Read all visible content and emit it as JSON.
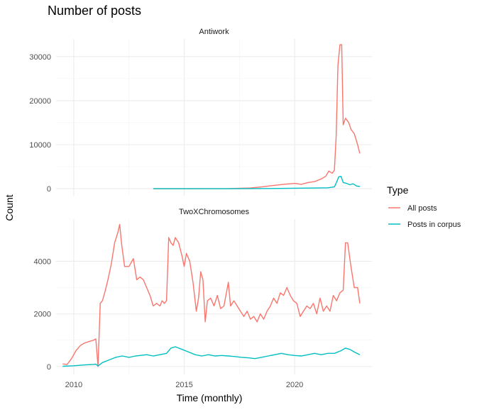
{
  "title": "Number of posts",
  "chart_data": {
    "type": "line",
    "xlabel": "Time (monthly)",
    "ylabel": "Count",
    "legend": {
      "title": "Type",
      "placement": "right",
      "entries": [
        "All posts",
        "Posts in corpus"
      ]
    },
    "colors": {
      "All posts": "#F8766D",
      "Posts in corpus": "#00BFC4"
    },
    "xlim": [
      2009.2,
      2023.5
    ],
    "x_ticks": [
      2010,
      2015,
      2020
    ],
    "x_tick_labels": [
      "2010",
      "2015",
      "2020"
    ],
    "grid": true,
    "panels": [
      {
        "name": "Antiwork",
        "ylim": [
          -1600,
          34000
        ],
        "y_ticks": [
          0,
          10000,
          20000,
          30000
        ],
        "y_tick_labels": [
          "0",
          "10000",
          "20000",
          "30000"
        ],
        "series": [
          {
            "name": "All posts",
            "x": [
              2013.6,
              2015.0,
              2017.0,
              2018.0,
              2018.5,
              2019.0,
              2019.5,
              2020.0,
              2020.3,
              2020.6,
              2020.9,
              2021.2,
              2021.4,
              2021.55,
              2021.7,
              2021.8,
              2021.88,
              2021.96,
              2022.05,
              2022.13,
              2022.2,
              2022.3,
              2022.45,
              2022.55,
              2022.7,
              2022.85,
              2022.95
            ],
            "y": [
              0,
              0,
              20,
              150,
              400,
              700,
              1000,
              1200,
              1000,
              1400,
              1600,
              2200,
              2800,
              4000,
              3500,
              4200,
              12000,
              28000,
              32700,
              32700,
              14500,
              16000,
              15000,
              13500,
              12500,
              10000,
              8000
            ]
          },
          {
            "name": "Posts in corpus",
            "x": [
              2013.6,
              2017.0,
              2019.0,
              2020.0,
              2021.0,
              2021.5,
              2021.8,
              2021.9,
              2022.0,
              2022.1,
              2022.2,
              2022.35,
              2022.5,
              2022.65,
              2022.8,
              2022.95
            ],
            "y": [
              0,
              0,
              50,
              100,
              150,
              200,
              400,
              1500,
              2700,
              2800,
              1400,
              1200,
              900,
              1100,
              600,
              500
            ]
          }
        ]
      },
      {
        "name": "TwoXChromosomes",
        "ylim": [
          -300,
          5600
        ],
        "y_ticks": [
          0,
          2000,
          4000
        ],
        "y_tick_labels": [
          "0",
          "2000",
          "4000"
        ],
        "series": [
          {
            "name": "All posts",
            "x": [
              2009.5,
              2009.7,
              2009.9,
              2010.1,
              2010.3,
              2010.5,
              2010.7,
              2010.9,
              2011.0,
              2011.1,
              2011.2,
              2011.3,
              2011.4,
              2011.55,
              2011.7,
              2011.85,
              2012.0,
              2012.08,
              2012.16,
              2012.3,
              2012.5,
              2012.7,
              2012.85,
              2013.0,
              2013.15,
              2013.3,
              2013.45,
              2013.6,
              2013.75,
              2013.9,
              2014.0,
              2014.1,
              2014.2,
              2014.3,
              2014.4,
              2014.5,
              2014.6,
              2014.75,
              2014.9,
              2015.0,
              2015.1,
              2015.25,
              2015.4,
              2015.55,
              2015.65,
              2015.75,
              2015.85,
              2015.95,
              2016.05,
              2016.2,
              2016.35,
              2016.5,
              2016.65,
              2016.8,
              2017.0,
              2017.1,
              2017.25,
              2017.4,
              2017.55,
              2017.7,
              2017.85,
              2018.0,
              2018.15,
              2018.3,
              2018.45,
              2018.6,
              2018.75,
              2018.9,
              2019.05,
              2019.2,
              2019.35,
              2019.5,
              2019.65,
              2019.8,
              2019.95,
              2020.1,
              2020.25,
              2020.4,
              2020.55,
              2020.7,
              2020.85,
              2021.0,
              2021.15,
              2021.3,
              2021.45,
              2021.6,
              2021.75,
              2021.9,
              2022.05,
              2022.2,
              2022.3,
              2022.4,
              2022.55,
              2022.7,
              2022.85,
              2022.95
            ],
            "y": [
              100,
              80,
              300,
              600,
              800,
              900,
              950,
              1000,
              1050,
              0,
              2400,
              2500,
              2800,
              3300,
              3900,
              4700,
              5100,
              5400,
              4700,
              3800,
              3800,
              4100,
              3300,
              3400,
              3300,
              3000,
              2700,
              2300,
              2400,
              2300,
              2500,
              2400,
              2500,
              4900,
              4700,
              4600,
              4900,
              4700,
              4200,
              3800,
              4300,
              4000,
              3200,
              2100,
              2600,
              3600,
              3300,
              1700,
              2500,
              2600,
              2300,
              2700,
              2200,
              2300,
              3200,
              2300,
              2500,
              2300,
              2100,
              1900,
              2100,
              1800,
              1900,
              1700,
              2000,
              1800,
              2100,
              2300,
              2600,
              2400,
              2800,
              2700,
              3000,
              2700,
              2500,
              2400,
              1900,
              2100,
              2300,
              2200,
              2400,
              2000,
              2600,
              2100,
              2300,
              2100,
              2700,
              2500,
              2800,
              2900,
              4700,
              4700,
              3800,
              3000,
              3000,
              2400
            ]
          },
          {
            "name": "Posts in corpus",
            "x": [
              2009.5,
              2010.0,
              2010.5,
              2010.9,
              2011.0,
              2011.1,
              2011.3,
              2011.6,
              2011.9,
              2012.2,
              2012.5,
              2012.8,
              2013.0,
              2013.3,
              2013.6,
              2013.9,
              2014.2,
              2014.4,
              2014.6,
              2014.9,
              2015.2,
              2015.5,
              2015.8,
              2016.1,
              2016.4,
              2016.7,
              2017.0,
              2017.3,
              2017.6,
              2017.9,
              2018.2,
              2018.5,
              2018.8,
              2019.1,
              2019.4,
              2019.7,
              2020.0,
              2020.3,
              2020.6,
              2020.9,
              2021.2,
              2021.5,
              2021.8,
              2022.1,
              2022.3,
              2022.5,
              2022.7,
              2022.95
            ],
            "y": [
              10,
              30,
              60,
              80,
              90,
              20,
              150,
              250,
              350,
              400,
              350,
              400,
              420,
              450,
              400,
              450,
              500,
              700,
              750,
              650,
              550,
              450,
              400,
              450,
              400,
              420,
              400,
              380,
              350,
              330,
              300,
              350,
              400,
              450,
              500,
              450,
              420,
              400,
              450,
              500,
              450,
              500,
              500,
              600,
              700,
              650,
              550,
              450
            ]
          }
        ]
      }
    ]
  }
}
